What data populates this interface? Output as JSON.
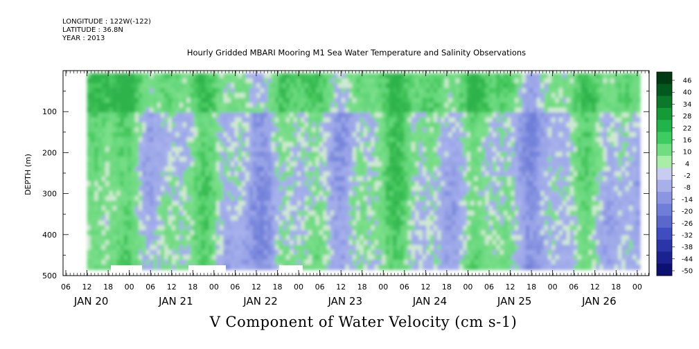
{
  "header": {
    "longitude": "LONGITUDE : 122W(-122)",
    "latitude": "LATITUDE : 36.8N",
    "year": "YEAR : 2013"
  },
  "chart_data": {
    "type": "heatmap",
    "title": "Hourly Gridded MBARI Mooring M1 Sea Water Temperature and Salinity Observations",
    "xlabel": "V Component of Water Velocity (cm s-1)",
    "ylabel": "DEPTH (m)",
    "y_axis": {
      "range": [
        500,
        0
      ],
      "ticks": [
        100,
        200,
        300,
        400,
        500
      ],
      "tick_labels": [
        "100",
        "200",
        "300",
        "400",
        "500"
      ]
    },
    "x_axis": {
      "hour_labels": [
        "06",
        "12",
        "18",
        "00",
        "06",
        "12",
        "18",
        "00",
        "06",
        "12",
        "18",
        "00",
        "06",
        "12",
        "18",
        "00",
        "06",
        "12",
        "18",
        "00",
        "06",
        "12",
        "18",
        "00",
        "06",
        "12",
        "18",
        "00"
      ],
      "day_labels": [
        "JAN 20",
        "JAN 21",
        "JAN 22",
        "JAN 23",
        "JAN 24",
        "JAN 25",
        "JAN 26"
      ]
    },
    "data_extent": {
      "start": "JAN 20 12:00",
      "end": "JAN 27 00:00",
      "depth_top_m": 20,
      "depth_bottom_m": 485
    },
    "colorbar": {
      "labels": [
        "46",
        "40",
        "34",
        "28",
        "22",
        "16",
        "10",
        "4",
        "-2",
        "-8",
        "-14",
        "-20",
        "-26",
        "-32",
        "-38",
        "-44",
        "-50"
      ],
      "colors": [
        "#003a12",
        "#005a1e",
        "#0a7a2a",
        "#159a38",
        "#20b44a",
        "#3ccc5f",
        "#6fdd80",
        "#a8eea8",
        "#c8ccf0",
        "#a8b0ea",
        "#8a96e2",
        "#6f7ed8",
        "#5a68cc",
        "#3e4ec0",
        "#2a36a8",
        "#1a2290",
        "#0c1070"
      ],
      "bins_per_label": 2,
      "range": [
        -50,
        52
      ]
    },
    "dominant_colors": {
      "positive": "#7ee08c",
      "negative": "#a9b2ec"
    }
  }
}
